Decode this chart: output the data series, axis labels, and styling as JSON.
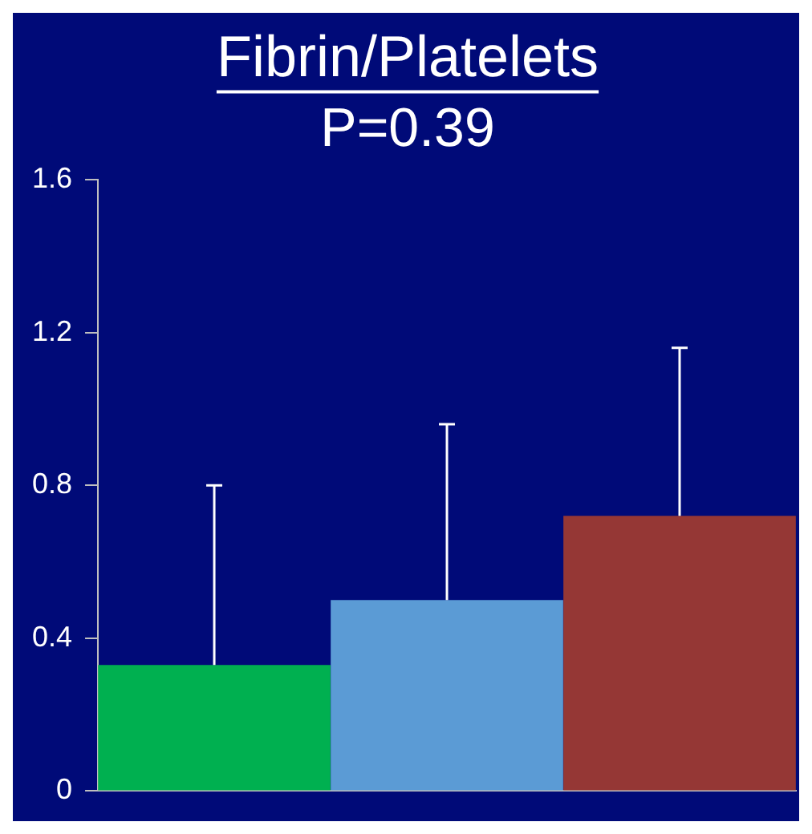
{
  "chart_data": {
    "type": "bar",
    "title": "Fibrin/Platelets",
    "subtitle": "P=0.39",
    "categories": [
      null,
      null,
      null
    ],
    "values": [
      0.33,
      0.5,
      0.72
    ],
    "colors": [
      "#00b050",
      "#5b9bd5",
      "#953735"
    ],
    "errors": [
      [
        0.33,
        0.8
      ],
      [
        0.5,
        0.96
      ],
      [
        0.72,
        1.16
      ]
    ],
    "ylim": [
      0,
      1.6
    ],
    "yticks": [
      0,
      0.4,
      0.8,
      1.2,
      1.6
    ],
    "grid": false,
    "legend": false
  }
}
